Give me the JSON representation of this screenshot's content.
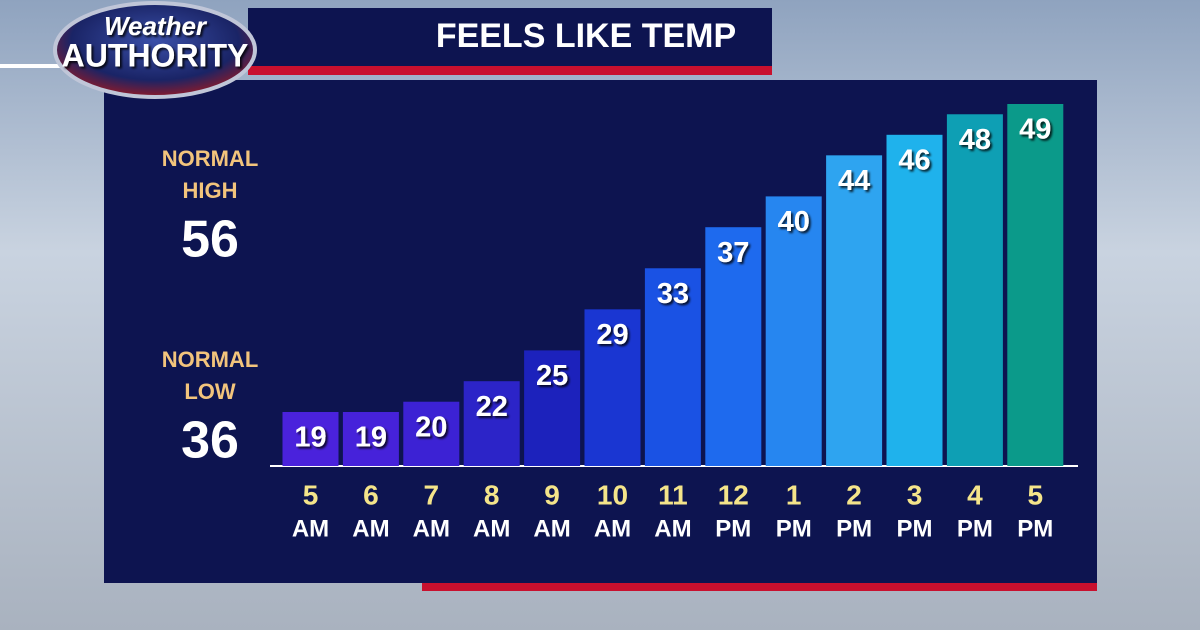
{
  "logo": {
    "line1": "Weather",
    "line2": "AUTHORITY"
  },
  "normals": {
    "high": {
      "label1": "NORMAL",
      "label2": "HIGH",
      "value": 56
    },
    "low": {
      "label1": "NORMAL",
      "label2": "LOW",
      "value": 36
    }
  },
  "chart_data": {
    "type": "bar",
    "title": "FEELS LIKE TEMP",
    "categories": [
      "5",
      "6",
      "7",
      "8",
      "9",
      "10",
      "11",
      "12",
      "1",
      "2",
      "3",
      "4",
      "5"
    ],
    "category_periods": [
      "AM",
      "AM",
      "AM",
      "AM",
      "AM",
      "AM",
      "AM",
      "PM",
      "PM",
      "PM",
      "PM",
      "PM",
      "PM"
    ],
    "values": [
      19,
      19,
      20,
      22,
      25,
      29,
      33,
      37,
      40,
      44,
      46,
      48,
      49
    ],
    "colors": [
      "#4a22dc",
      "#4622da",
      "#3c22d4",
      "#2c24c8",
      "#1c22bc",
      "#1a36d2",
      "#1a52e4",
      "#1e6aee",
      "#2686f0",
      "#2ea4f0",
      "#1fb2ec",
      "#0e9fb4",
      "#0b9a8a"
    ]
  }
}
